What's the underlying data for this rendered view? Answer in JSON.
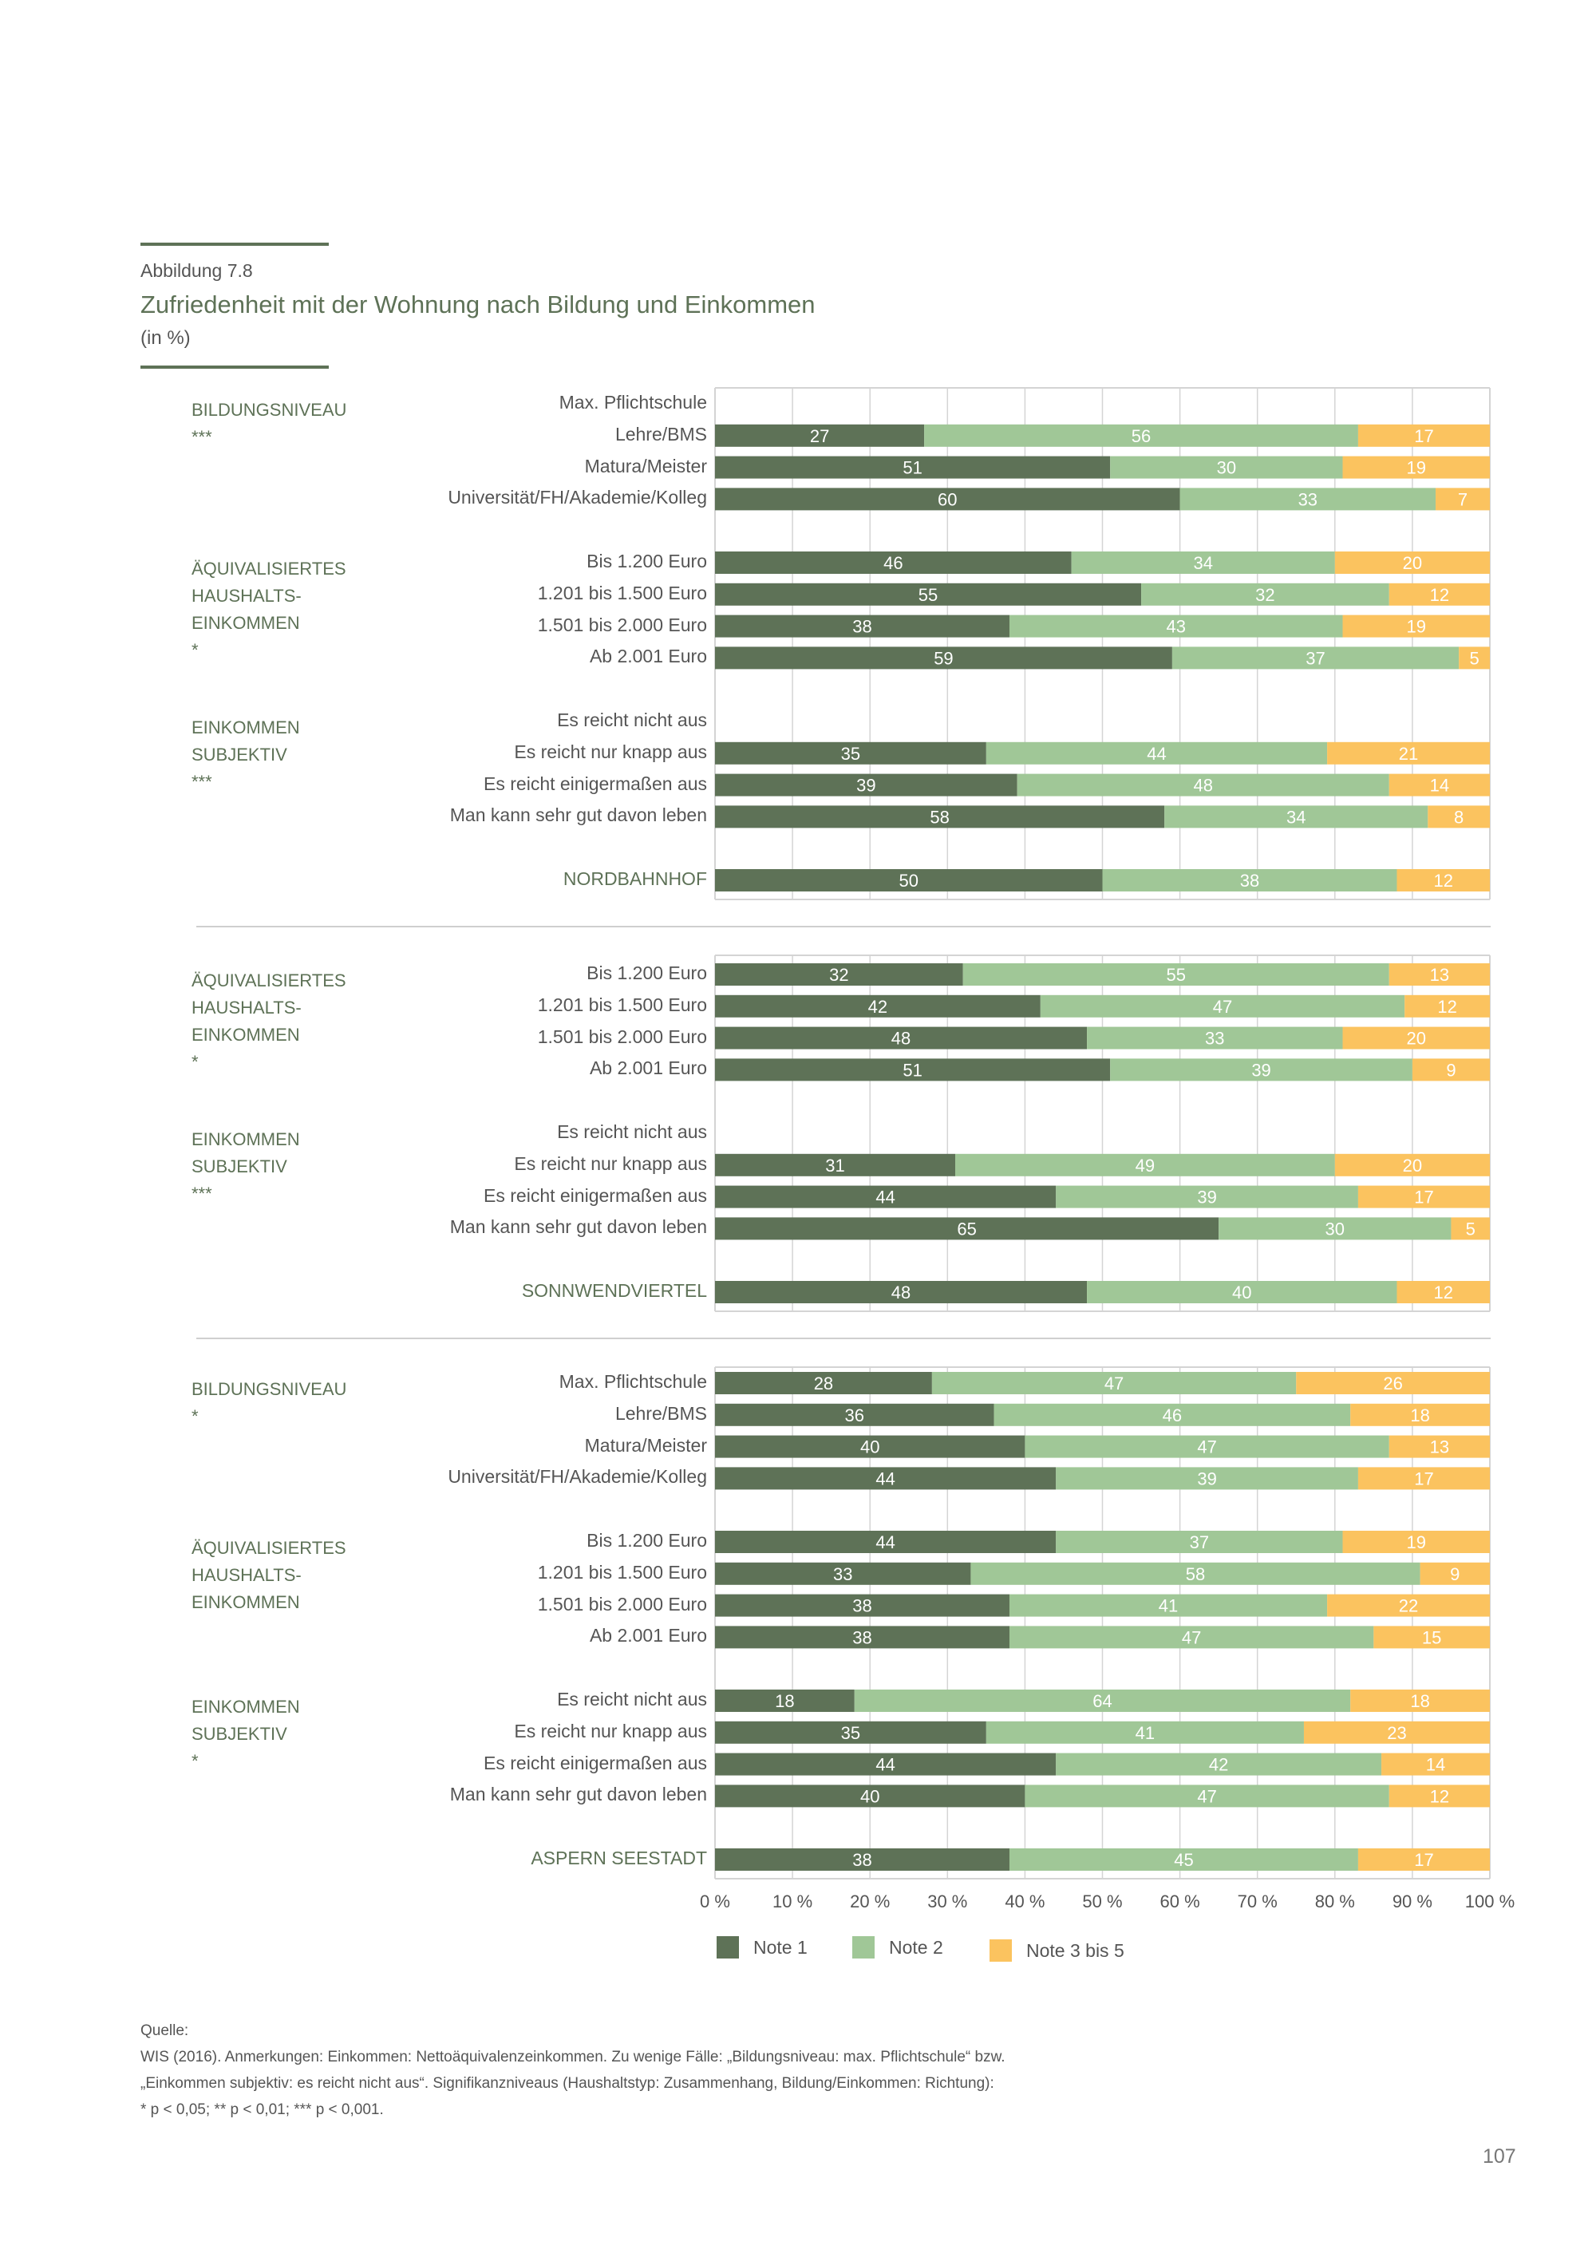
{
  "figure": {
    "number": "Abbildung 7.8",
    "title": "Zufriedenheit mit der Wohnung nach Bildung und Einkommen",
    "unit": "(in %)"
  },
  "colors": {
    "note1": "#5e7257",
    "note2": "#a0c797",
    "note3_5": "#fbc35f",
    "accent": "#5e7257",
    "grid": "#d4d4d4"
  },
  "chart_data": {
    "type": "bar",
    "orientation": "horizontal",
    "stacked": true,
    "title": "Zufriedenheit mit der Wohnung nach Bildung und Einkommen",
    "xlabel": "",
    "ylabel": "",
    "xlim": [
      0,
      100
    ],
    "x_ticks": [
      "0 %",
      "10 %",
      "20 %",
      "30 %",
      "40 %",
      "50 %",
      "60 %",
      "70 %",
      "80 %",
      "90 %",
      "100 %"
    ],
    "grid": true,
    "legend_position": "bottom",
    "series_names": [
      "Note 1",
      "Note 2",
      "Note 3 bis 5"
    ],
    "panels": [
      {
        "name": "NORDBAHNHOF",
        "groups": [
          {
            "label": "BILDUNGSNIVEAU",
            "significance": "***",
            "rows": [
              {
                "label": "Max. Pflichtschule",
                "values": null
              },
              {
                "label": "Lehre/BMS",
                "values": [
                  27,
                  56,
                  17
                ]
              },
              {
                "label": "Matura/Meister",
                "values": [
                  51,
                  30,
                  19
                ]
              },
              {
                "label": "Universität/FH/Akademie/Kolleg",
                "values": [
                  60,
                  33,
                  7
                ]
              }
            ]
          },
          {
            "label": "ÄQUIVALISIERTES\nHAUSHALTS-\nEINKOMMEN",
            "significance": "*",
            "rows": [
              {
                "label": "Bis 1.200 Euro",
                "values": [
                  46,
                  34,
                  20
                ]
              },
              {
                "label": "1.201 bis 1.500 Euro",
                "values": [
                  55,
                  32,
                  12
                ]
              },
              {
                "label": "1.501 bis 2.000 Euro",
                "values": [
                  38,
                  43,
                  19
                ]
              },
              {
                "label": "Ab 2.001 Euro",
                "values": [
                  59,
                  37,
                  5
                ]
              }
            ]
          },
          {
            "label": "EINKOMMEN\nSUBJEKTIV",
            "significance": "***",
            "rows": [
              {
                "label": "Es reicht nicht aus",
                "values": null
              },
              {
                "label": "Es reicht nur knapp aus",
                "values": [
                  35,
                  44,
                  21
                ]
              },
              {
                "label": "Es reicht einigermaßen aus",
                "values": [
                  39,
                  48,
                  14
                ]
              },
              {
                "label": "Man kann sehr gut davon leben",
                "values": [
                  58,
                  34,
                  8
                ]
              }
            ]
          }
        ],
        "total": {
          "label": "NORDBAHNHOF",
          "values": [
            50,
            38,
            12
          ]
        }
      },
      {
        "name": "SONNWENDVIERTEL",
        "groups": [
          {
            "label": "ÄQUIVALISIERTES\nHAUSHALTS-\nEINKOMMEN",
            "significance": "*",
            "rows": [
              {
                "label": "Bis 1.200 Euro",
                "values": [
                  32,
                  55,
                  13
                ]
              },
              {
                "label": "1.201 bis 1.500 Euro",
                "values": [
                  42,
                  47,
                  12
                ]
              },
              {
                "label": "1.501 bis 2.000 Euro",
                "values": [
                  48,
                  33,
                  20
                ]
              },
              {
                "label": "Ab 2.001 Euro",
                "values": [
                  51,
                  39,
                  9
                ]
              }
            ]
          },
          {
            "label": "EINKOMMEN\nSUBJEKTIV",
            "significance": "***",
            "rows": [
              {
                "label": "Es reicht nicht aus",
                "values": null
              },
              {
                "label": "Es reicht nur knapp aus",
                "values": [
                  31,
                  49,
                  20
                ]
              },
              {
                "label": "Es reicht einigermaßen aus",
                "values": [
                  44,
                  39,
                  17
                ]
              },
              {
                "label": "Man kann sehr gut davon leben",
                "values": [
                  65,
                  30,
                  5
                ]
              }
            ]
          }
        ],
        "total": {
          "label": "SONNWENDVIERTEL",
          "values": [
            48,
            40,
            12
          ]
        }
      },
      {
        "name": "ASPERN SEESTADT",
        "groups": [
          {
            "label": "BILDUNGSNIVEAU",
            "significance": "*",
            "rows": [
              {
                "label": "Max. Pflichtschule",
                "values": [
                  28,
                  47,
                  26
                ]
              },
              {
                "label": "Lehre/BMS",
                "values": [
                  36,
                  46,
                  18
                ]
              },
              {
                "label": "Matura/Meister",
                "values": [
                  40,
                  47,
                  13
                ]
              },
              {
                "label": "Universität/FH/Akademie/Kolleg",
                "values": [
                  44,
                  39,
                  17
                ]
              }
            ]
          },
          {
            "label": "ÄQUIVALISIERTES\nHAUSHALTS-\nEINKOMMEN",
            "significance": "",
            "rows": [
              {
                "label": "Bis 1.200 Euro",
                "values": [
                  44,
                  37,
                  19
                ]
              },
              {
                "label": "1.201 bis 1.500 Euro",
                "values": [
                  33,
                  58,
                  9
                ]
              },
              {
                "label": "1.501 bis 2.000 Euro",
                "values": [
                  38,
                  41,
                  22
                ]
              },
              {
                "label": "Ab 2.001 Euro",
                "values": [
                  38,
                  47,
                  15
                ]
              }
            ]
          },
          {
            "label": "EINKOMMEN\nSUBJEKTIV",
            "significance": "*",
            "rows": [
              {
                "label": "Es reicht nicht aus",
                "values": [
                  18,
                  64,
                  18
                ]
              },
              {
                "label": "Es reicht nur knapp aus",
                "values": [
                  35,
                  41,
                  23
                ]
              },
              {
                "label": "Es reicht einigermaßen aus",
                "values": [
                  44,
                  42,
                  14
                ]
              },
              {
                "label": "Man kann sehr gut davon leben",
                "values": [
                  40,
                  47,
                  12
                ]
              }
            ]
          }
        ],
        "total": {
          "label": "ASPERN SEESTADT",
          "values": [
            38,
            45,
            17
          ]
        }
      }
    ]
  },
  "legend": {
    "items": [
      {
        "label": "Note 1",
        "color_key": "note1"
      },
      {
        "label": "Note 2",
        "color_key": "note2"
      },
      {
        "label": "Note 3 bis 5",
        "color_key": "note3_5"
      }
    ]
  },
  "source": {
    "heading": "Quelle:",
    "lines": [
      "WIS (2016). Anmerkungen: Einkommen: Nettoäquivalenzeinkommen. Zu wenige Fälle: „Bildungsniveau: max. Pflichtschule“ bzw.",
      "„Einkommen subjektiv: es reicht nicht aus“. Signifikanzniveaus (Haushaltstyp: Zusammenhang, Bildung/Einkommen: Richtung):",
      "* p < 0,05; ** p < 0,01; *** p < 0,001."
    ]
  },
  "page_number": "107"
}
